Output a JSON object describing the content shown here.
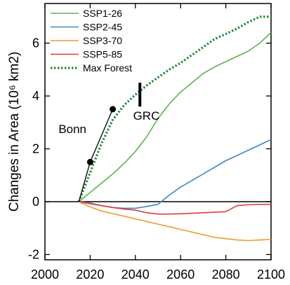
{
  "chart_data": {
    "type": "line",
    "title": "",
    "xlabel": "",
    "ylabel": "Changes in Area (10⁶ km2)",
    "xlim": [
      2000,
      2100
    ],
    "ylim": [
      -2.2,
      7.5
    ],
    "x_ticks": [
      2000,
      2020,
      2040,
      2060,
      2080,
      2100
    ],
    "y_ticks": [
      -2,
      0,
      2,
      4,
      6
    ],
    "grid": false,
    "legend_position": "top-left",
    "zero_line": true,
    "series": [
      {
        "name": "SSP1-26",
        "color": "#5ab54b",
        "style": "solid",
        "x": [
          2015,
          2020,
          2025,
          2030,
          2035,
          2040,
          2045,
          2050,
          2055,
          2060,
          2065,
          2070,
          2075,
          2080,
          2085,
          2090,
          2095,
          2100
        ],
        "y": [
          0.0,
          0.35,
          0.7,
          1.05,
          1.45,
          1.9,
          2.45,
          3.15,
          3.7,
          4.15,
          4.5,
          4.85,
          5.1,
          5.3,
          5.5,
          5.7,
          6.0,
          6.4
        ]
      },
      {
        "name": "SSP2-45",
        "color": "#3d86c6",
        "style": "solid",
        "x": [
          2015,
          2020,
          2025,
          2030,
          2035,
          2040,
          2045,
          2050,
          2055,
          2060,
          2065,
          2070,
          2075,
          2080,
          2085,
          2090,
          2095,
          2100
        ],
        "y": [
          0.0,
          -0.05,
          -0.15,
          -0.22,
          -0.25,
          -0.25,
          -0.18,
          -0.1,
          0.25,
          0.55,
          0.8,
          1.05,
          1.3,
          1.55,
          1.75,
          1.95,
          2.15,
          2.35
        ]
      },
      {
        "name": "SSP3-70",
        "color": "#f0992e",
        "style": "solid",
        "x": [
          2015,
          2020,
          2025,
          2030,
          2035,
          2040,
          2045,
          2050,
          2055,
          2060,
          2065,
          2070,
          2075,
          2080,
          2085,
          2090,
          2095,
          2100
        ],
        "y": [
          0.0,
          -0.2,
          -0.35,
          -0.45,
          -0.55,
          -0.65,
          -0.75,
          -0.85,
          -0.95,
          -1.05,
          -1.15,
          -1.25,
          -1.35,
          -1.4,
          -1.45,
          -1.47,
          -1.45,
          -1.43
        ]
      },
      {
        "name": "SSP5-85",
        "color": "#e03a3e",
        "style": "solid",
        "x": [
          2015,
          2020,
          2025,
          2030,
          2035,
          2040,
          2045,
          2050,
          2055,
          2060,
          2065,
          2070,
          2075,
          2080,
          2085,
          2090,
          2095,
          2100
        ],
        "y": [
          0.0,
          -0.08,
          -0.15,
          -0.22,
          -0.28,
          -0.32,
          -0.42,
          -0.47,
          -0.47,
          -0.46,
          -0.44,
          -0.42,
          -0.4,
          -0.38,
          -0.15,
          -0.12,
          -0.1,
          -0.1
        ]
      },
      {
        "name": "Max Forest",
        "color": "#1e8a3c",
        "style": "dotted",
        "x": [
          2015,
          2020,
          2025,
          2030,
          2035,
          2040,
          2045,
          2050,
          2055,
          2060,
          2065,
          2070,
          2075,
          2080,
          2085,
          2090,
          2095,
          2100
        ],
        "y": [
          0.0,
          1.1,
          2.2,
          3.1,
          3.65,
          4.05,
          4.4,
          4.7,
          5.0,
          5.25,
          5.55,
          5.85,
          6.15,
          6.35,
          6.55,
          6.8,
          7.0,
          7.0
        ]
      }
    ],
    "annotations": [
      {
        "label": "Bonn",
        "type": "points_line",
        "color": "#000000",
        "points": [
          [
            2015,
            0.0
          ],
          [
            2020,
            1.5
          ],
          [
            2030,
            3.5
          ]
        ],
        "markers": [
          [
            2020,
            1.5
          ],
          [
            2030,
            3.5
          ]
        ],
        "label_at": [
          2006,
          2.6
        ]
      },
      {
        "label": "GRC",
        "type": "bar",
        "color": "#000000",
        "x": 2042,
        "y_range": [
          3.6,
          4.5
        ],
        "label_at": [
          2039,
          3.1
        ]
      }
    ]
  }
}
